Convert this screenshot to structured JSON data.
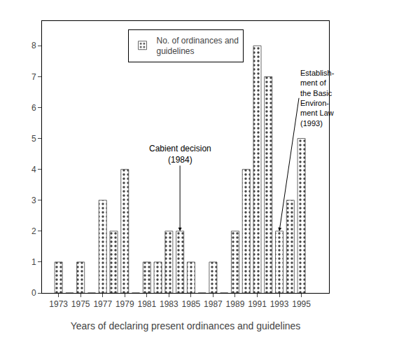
{
  "chart_data": {
    "type": "bar",
    "x": [
      1973,
      1974,
      1975,
      1976,
      1977,
      1978,
      1979,
      1980,
      1981,
      1982,
      1983,
      1984,
      1985,
      1986,
      1987,
      1988,
      1989,
      1990,
      1991,
      1992,
      1993,
      1994,
      1995
    ],
    "series": [
      {
        "name": "No. of ordinances and\nguidelines",
        "color": "white",
        "values": [
          1,
          0,
          1,
          0,
          3,
          2,
          4,
          0,
          1,
          1,
          2,
          2,
          1,
          0,
          1,
          0,
          2,
          4,
          8,
          7,
          2,
          3,
          5
        ]
      }
    ],
    "xlim": [
      1971.5,
      1997.5
    ],
    "xticks": [
      1973,
      1975,
      1977,
      1979,
      1981,
      1983,
      1985,
      1987,
      1989,
      1991,
      1993,
      1995
    ],
    "ylim": [
      0,
      8.8
    ],
    "yticks": [
      0,
      1,
      2,
      3,
      4,
      5,
      6,
      7,
      8
    ],
    "xlabel": "Years of declaring present ordinances and guidelines",
    "legend": "upper center",
    "grid": false,
    "annotations": [
      {
        "text": "Cabient decision\n(1984)",
        "x": 1984
      },
      {
        "text": "Establish-\nment of\nthe Basic\nEnviron-\nment Law\n(1993)",
        "x": 1993
      }
    ]
  }
}
